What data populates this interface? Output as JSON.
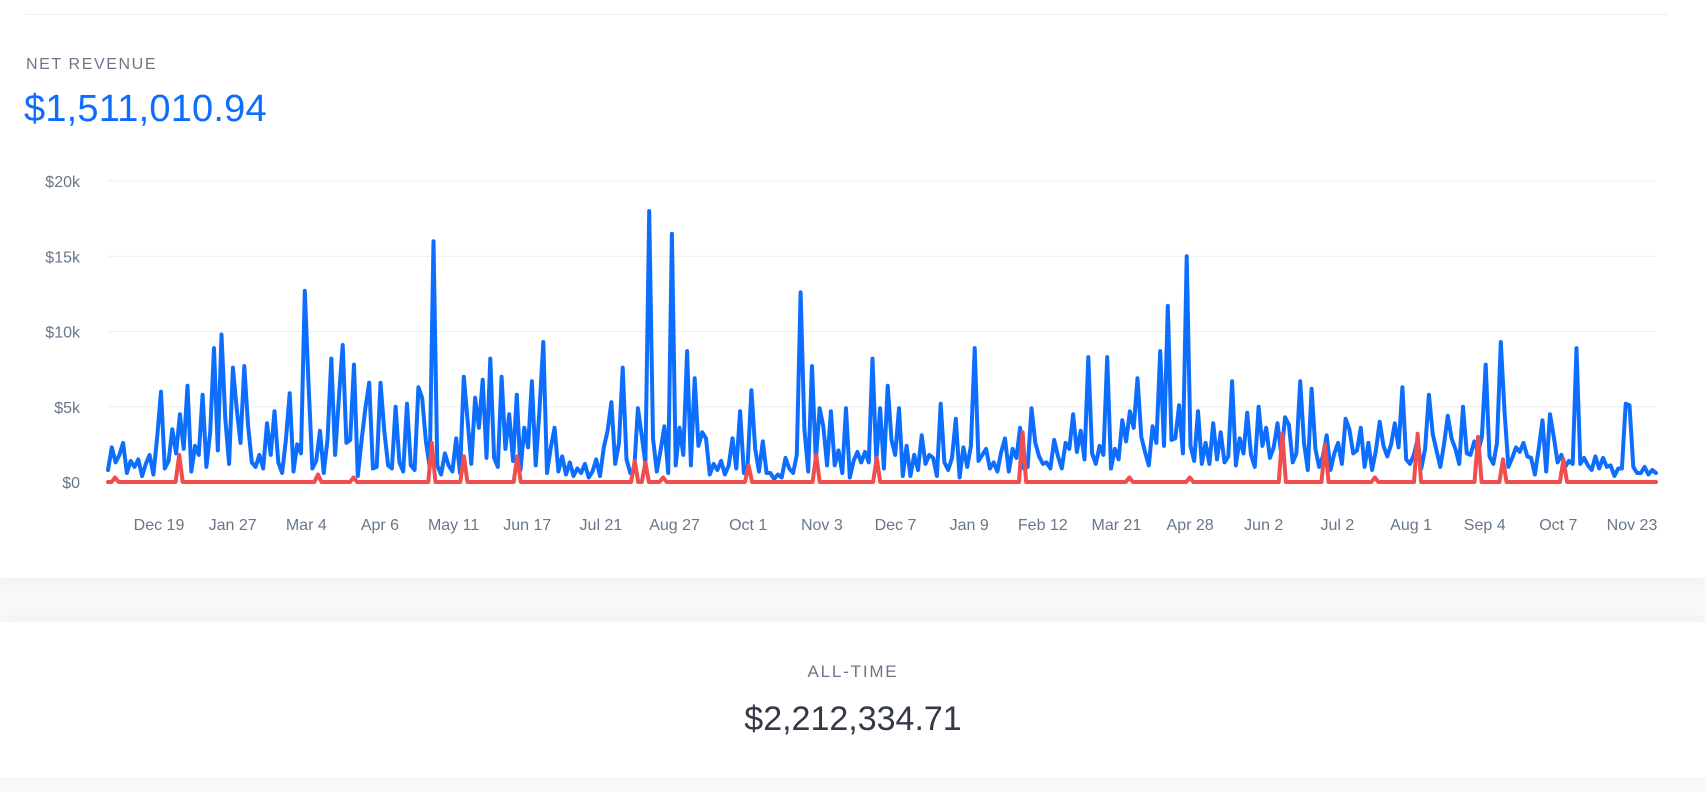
{
  "net_revenue": {
    "label": "NET REVENUE",
    "value": "$1,511,010.94"
  },
  "all_time": {
    "label": "ALL-TIME",
    "value": "$2,212,334.71"
  },
  "colors": {
    "primary": "#0d6efd",
    "secondary": "#f04e4e",
    "grid": "#eceef1",
    "muted_text": "#68768a"
  },
  "chart_data": {
    "type": "line",
    "title": "",
    "xlabel": "",
    "ylabel": "",
    "ylim": [
      0,
      20000
    ],
    "y_ticks": [
      {
        "value": 0,
        "label": "$0"
      },
      {
        "value": 5000,
        "label": "$5k"
      },
      {
        "value": 10000,
        "label": "$10k"
      },
      {
        "value": 15000,
        "label": "$15k"
      },
      {
        "value": 20000,
        "label": "$20k"
      }
    ],
    "x_tick_labels": [
      "Dec 19",
      "Jan 27",
      "Mar 4",
      "Apr 6",
      "May 11",
      "Jun 17",
      "Jul 21",
      "Aug 27",
      "Oct 1",
      "Nov 3",
      "Dec 7",
      "Jan 9",
      "Feb 12",
      "Mar 21",
      "Apr 28",
      "Jun 2",
      "Jul 2",
      "Aug 1",
      "Sep 4",
      "Oct 7",
      "Nov 23"
    ],
    "grid": true,
    "legend": "none",
    "series": [
      {
        "color": "#0d6efd",
        "values": [
          800,
          2300,
          1300,
          1800,
          2600,
          600,
          1400,
          1000,
          1500,
          400,
          1200,
          1800,
          500,
          3000,
          6000,
          900,
          1400,
          3500,
          1900,
          4500,
          2200,
          6400,
          700,
          2400,
          1800,
          5800,
          1000,
          3300,
          8900,
          2100,
          9800,
          4200,
          1200,
          7600,
          4900,
          2600,
          7700,
          3800,
          1300,
          1000,
          1800,
          900,
          3900,
          1800,
          4700,
          1300,
          600,
          2800,
          5900,
          700,
          2500,
          1900,
          12700,
          6400,
          900,
          1400,
          3400,
          600,
          2800,
          8200,
          1800,
          5600,
          9100,
          2600,
          2800,
          7800,
          400,
          2800,
          4900,
          6600,
          900,
          1000,
          6600,
          3400,
          1100,
          900,
          5000,
          1300,
          700,
          5200,
          1100,
          800,
          6300,
          5600,
          2700,
          1000,
          16000,
          1100,
          500,
          1900,
          1100,
          700,
          2900,
          600,
          7000,
          4100,
          1200,
          5600,
          3600,
          6800,
          1600,
          8200,
          1600,
          1000,
          7000,
          2200,
          4500,
          1400,
          5800,
          800,
          3600,
          2300,
          6700,
          1100,
          4800,
          9300,
          600,
          2300,
          3600,
          700,
          1700,
          500,
          1300,
          400,
          900,
          600,
          1200,
          300,
          700,
          1500,
          400,
          2300,
          3400,
          5300,
          1200,
          2600,
          7600,
          1500,
          600,
          700,
          4900,
          3100,
          1200,
          18000,
          2900,
          700,
          2100,
          3700,
          600,
          16500,
          1100,
          3600,
          1800,
          8700,
          1100,
          6900,
          2400,
          3300,
          2900,
          500,
          1200,
          800,
          1400,
          500,
          1100,
          2900,
          900,
          4700,
          600,
          1100,
          6100,
          2200,
          700,
          2700,
          600,
          600,
          200,
          500,
          300,
          1600,
          900,
          600,
          1800,
          12600,
          3500,
          700,
          7700,
          1400,
          4900,
          3700,
          1100,
          4700,
          1100,
          2100,
          600,
          4900,
          300,
          1400,
          2000,
          1300,
          2000,
          1300,
          8200,
          1400,
          4900,
          900,
          6400,
          2800,
          1800,
          4900,
          400,
          2400,
          400,
          1800,
          800,
          3100,
          1200,
          1800,
          1600,
          400,
          5200,
          1300,
          800,
          1600,
          4200,
          300,
          2300,
          1000,
          2400,
          8900,
          1400,
          1800,
          2200,
          900,
          1300,
          700,
          2000,
          2900,
          700,
          2200,
          1600,
          3600,
          900,
          1000,
          4900,
          2600,
          1700,
          1200,
          1300,
          900,
          2800,
          1700,
          900,
          2600,
          2200,
          4500,
          2000,
          3400,
          1500,
          8300,
          1900,
          1200,
          2400,
          1800,
          8300,
          900,
          2200,
          1500,
          4100,
          2700,
          4700,
          3600,
          6900,
          3000,
          2000,
          1100,
          3700,
          2600,
          8700,
          2400,
          11700,
          2800,
          2900,
          5100,
          1900,
          15000,
          2400,
          1400,
          4700,
          1200,
          2600,
          1200,
          3900,
          1500,
          3300,
          1300,
          1700,
          6700,
          1100,
          2900,
          1900,
          4600,
          1800,
          1000,
          5000,
          2400,
          3600,
          1600,
          2300,
          3900,
          1800,
          4300,
          3800,
          1300,
          1900,
          6700,
          2600,
          800,
          6200,
          2200,
          1000,
          1700,
          3100,
          800,
          1900,
          2600,
          1200,
          4200,
          3500,
          1900,
          2100,
          3600,
          1000,
          2600,
          800,
          2100,
          4000,
          2400,
          1700,
          2500,
          3900,
          2300,
          6300,
          1500,
          1200,
          1800,
          2800,
          900,
          2200,
          5800,
          3200,
          2100,
          1000,
          2500,
          4400,
          2900,
          2200,
          1200,
          5000,
          1900,
          1800,
          2700,
          2000,
          3000,
          7800,
          1700,
          1200,
          2600,
          9300,
          4600,
          1000,
          1600,
          2300,
          2000,
          2600,
          1700,
          1600,
          500,
          2200,
          4100,
          700,
          4500,
          3000,
          1300,
          1800,
          1000,
          1400,
          1200,
          8900,
          1200,
          1600,
          1100,
          800,
          1700,
          900,
          1600,
          1000,
          1100,
          400,
          900,
          900,
          5200,
          5100,
          1000,
          600,
          600,
          1000,
          500,
          800,
          600
        ],
        "name": ""
      },
      {
        "color": "#f04e4e",
        "values": [
          0,
          0,
          300,
          0,
          0,
          0,
          0,
          0,
          0,
          0,
          0,
          0,
          0,
          0,
          0,
          0,
          0,
          0,
          0,
          0,
          1800,
          0,
          0,
          0,
          0,
          0,
          0,
          0,
          0,
          0,
          0,
          0,
          0,
          0,
          0,
          0,
          0,
          0,
          0,
          0,
          0,
          0,
          0,
          0,
          0,
          0,
          0,
          0,
          0,
          0,
          0,
          0,
          0,
          0,
          0,
          0,
          0,
          0,
          0,
          500,
          0,
          0,
          0,
          0,
          0,
          0,
          0,
          0,
          0,
          300,
          0,
          0,
          0,
          0,
          0,
          0,
          0,
          0,
          0,
          0,
          0,
          0,
          0,
          0,
          0,
          0,
          0,
          0,
          0,
          0,
          0,
          2600,
          0,
          0,
          0,
          0,
          0,
          0,
          0,
          0,
          1700,
          0,
          0,
          0,
          0,
          0,
          0,
          0,
          0,
          0,
          0,
          0,
          0,
          0,
          0,
          1700,
          0,
          0,
          0,
          0,
          0,
          0,
          0,
          0,
          0,
          0,
          0,
          0,
          0,
          0,
          0,
          0,
          0,
          0,
          0,
          0,
          0,
          0,
          0,
          0,
          0,
          0,
          0,
          0,
          0,
          0,
          0,
          0,
          1400,
          0,
          0,
          1300,
          0,
          0,
          0,
          0,
          300,
          0,
          0,
          0,
          0,
          0,
          0,
          0,
          0,
          0,
          0,
          0,
          0,
          0,
          0,
          0,
          0,
          0,
          0,
          0,
          0,
          0,
          0,
          0,
          1100,
          0,
          0,
          0,
          0,
          0,
          0,
          0,
          0,
          0,
          0,
          0,
          0,
          0,
          0,
          0,
          0,
          0,
          0,
          1800,
          0,
          0,
          0,
          0,
          0,
          0,
          0,
          0,
          0,
          0,
          0,
          0,
          0,
          0,
          0,
          0,
          1600,
          0,
          0,
          0,
          0,
          0,
          0,
          0,
          0,
          0,
          0,
          0,
          0,
          0,
          0,
          0,
          0,
          0,
          0,
          0,
          0,
          0,
          0,
          0,
          0,
          0,
          0,
          0,
          0,
          0,
          0,
          0,
          0,
          0,
          0,
          0,
          0,
          0,
          0,
          0,
          0,
          3300,
          0,
          0,
          0,
          0,
          0,
          0,
          0,
          0,
          0,
          0,
          0,
          0,
          0,
          0,
          0,
          0,
          0,
          0,
          0,
          0,
          0,
          0,
          0,
          0,
          0,
          0,
          0,
          0,
          0,
          300,
          0,
          0,
          0,
          0,
          0,
          0,
          0,
          0,
          0,
          0,
          0,
          0,
          0,
          0,
          0,
          0,
          300,
          0,
          0,
          0,
          0,
          0,
          0,
          0,
          0,
          0,
          0,
          0,
          0,
          0,
          0,
          0,
          0,
          0,
          0,
          0,
          0,
          0,
          0,
          0,
          0,
          0,
          3200,
          0,
          0,
          0,
          0,
          0,
          0,
          0,
          0,
          0,
          0,
          0,
          2500,
          0,
          0,
          0,
          0,
          0,
          0,
          0,
          0,
          0,
          0,
          0,
          0,
          0,
          300,
          0,
          0,
          0,
          0,
          0,
          0,
          0,
          0,
          0,
          0,
          0,
          3200,
          0,
          0,
          0,
          0,
          0,
          0,
          0,
          0,
          0,
          0,
          0,
          0,
          0,
          0,
          0,
          0,
          3000,
          0,
          0,
          0,
          0,
          0,
          0,
          1500,
          0,
          0,
          0,
          0,
          0,
          0,
          0,
          0,
          0,
          0,
          0,
          0,
          0,
          0,
          0,
          0,
          1500,
          0,
          0,
          0,
          0,
          0,
          0,
          0,
          0,
          0,
          0,
          0,
          0,
          0,
          0,
          0,
          0,
          0,
          0,
          0,
          0,
          0,
          0,
          0,
          0,
          0,
          0
        ],
        "name": ""
      }
    ]
  }
}
